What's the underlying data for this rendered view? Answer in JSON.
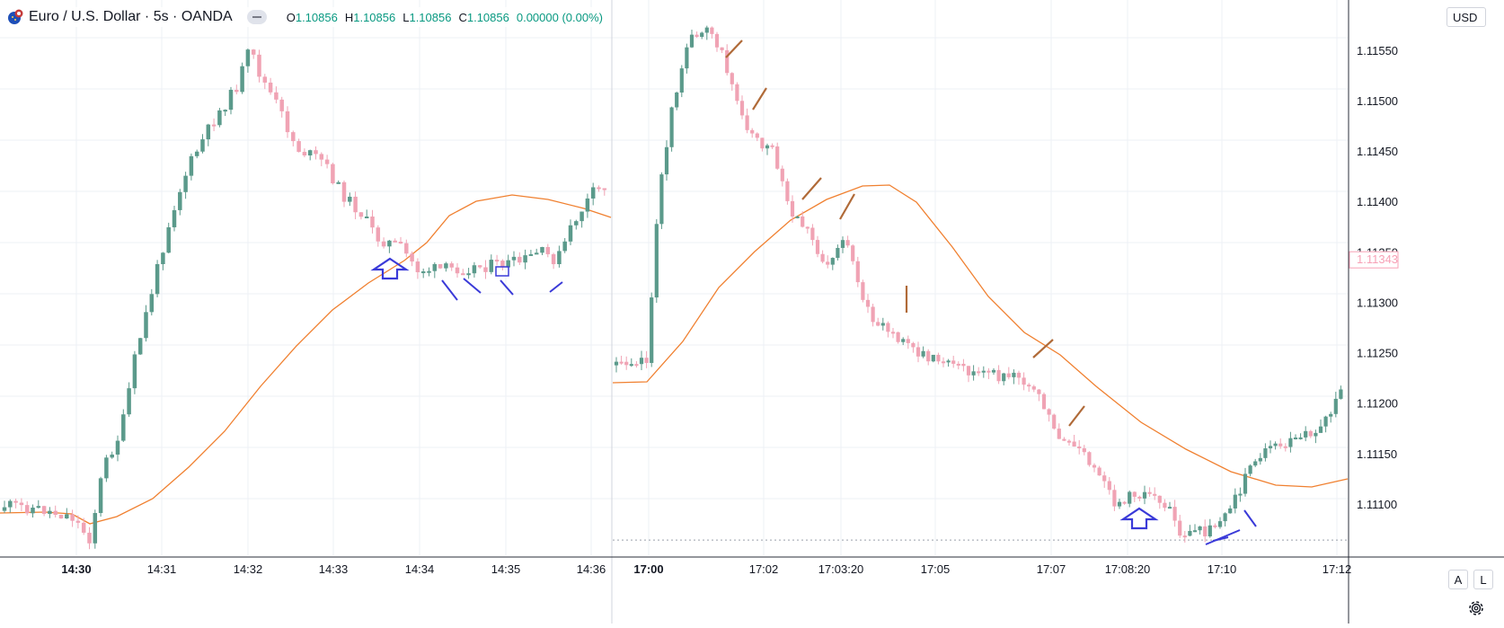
{
  "header": {
    "symbol": "Euro / U.S. Dollar · 5s · OANDA",
    "ohlc": [
      {
        "k": "O",
        "v": "1.10856"
      },
      {
        "k": "H",
        "v": "1.10856"
      },
      {
        "k": "L",
        "v": "1.10856"
      },
      {
        "k": "C",
        "v": "1.10856"
      },
      {
        "k": "",
        "v": "0.00000 (0.00%)"
      }
    ]
  },
  "currency": "USD",
  "scale_buttons": {
    "auto": "A",
    "log": "L"
  },
  "colors": {
    "up": "#5b9a8b",
    "down": "#f0a3b4",
    "ma": "#f08030",
    "brown_marker": "#b06a38",
    "blue_marker": "#3a3ad8",
    "grid": "#eef1f5",
    "last_price": "#f7a1b6"
  },
  "chart_data": [
    {
      "type": "candlestick",
      "panel": "left",
      "x_ticks": [
        "14:30",
        "14:31",
        "14:32",
        "14:33",
        "14:34",
        "14:35",
        "14:36"
      ],
      "bold_tick": "14:30",
      "moving_average": true,
      "annotations": [
        "up-arrow",
        "blue-marker-lines"
      ]
    },
    {
      "type": "candlestick",
      "panel": "right",
      "x_ticks": [
        "17:00",
        "17:02",
        "17:03:20",
        "17:05",
        "17:07",
        "17:08:20",
        "17:10",
        "17:12"
      ],
      "bold_tick": "17:00",
      "y_ticks": [
        "1.11550",
        "1.11500",
        "1.11450",
        "1.11400",
        "1.11350",
        "1.11300",
        "1.11250",
        "1.11200",
        "1.11150",
        "1.11100"
      ],
      "ylim": [
        1.1105,
        1.1159
      ],
      "last_price": "1.11343",
      "dotted_level": 1.11065,
      "moving_average": true,
      "annotations": [
        "up-arrow",
        "brown-marker-lines",
        "blue-marker-lines"
      ]
    }
  ]
}
